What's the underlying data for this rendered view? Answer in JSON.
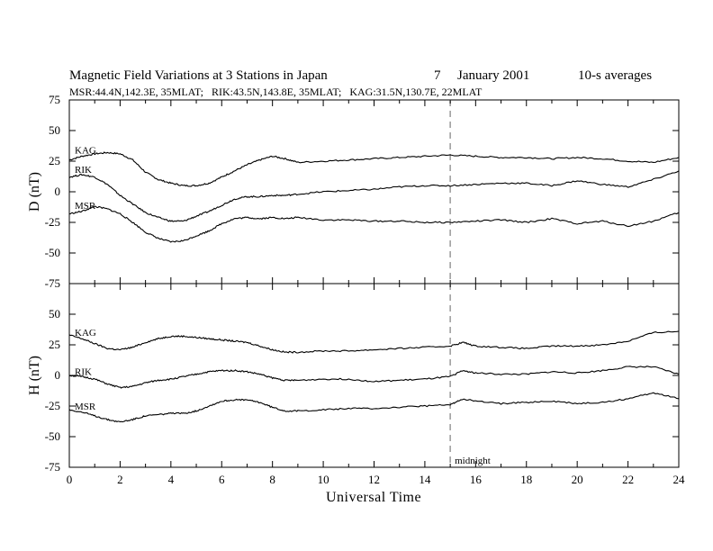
{
  "header": {
    "title_main": "Magnetic Field Variations at 3 Stations in Japan",
    "title_date_day": "7",
    "title_date_month_year": "January 2001",
    "title_averaging": "10-s averages",
    "stations_line": "MSR:44.4N,142.3E, 35MLAT;   RIK:43.5N,143.8E, 35MLAT;   KAG:31.5N,130.7E, 22MLAT"
  },
  "midnight_label": "midnight",
  "colors": {
    "trace": "#000000",
    "midnight_line": "#999999",
    "frame": "#000000"
  },
  "chart_data": [
    {
      "type": "line",
      "panel": "top",
      "ylabel": "D (nT)",
      "xlabel": "",
      "xlim": [
        0,
        24
      ],
      "ylim": [
        -75,
        75
      ],
      "yticks": [
        75,
        50,
        25,
        0,
        -25,
        -50,
        -75
      ],
      "ytick_labels": [
        "75",
        "50",
        "25",
        "0",
        "-25",
        "-50",
        "-75"
      ],
      "xticks": [
        0,
        2,
        4,
        6,
        8,
        10,
        12,
        14,
        16,
        18,
        20,
        22,
        24
      ],
      "grid": false,
      "series": [
        {
          "name": "KAG",
          "x": [
            0,
            0.5,
            1,
            1.5,
            2,
            2.5,
            3,
            3.5,
            4,
            4.5,
            5,
            5.5,
            6,
            6.5,
            7,
            7.5,
            8,
            8.5,
            9,
            10,
            11,
            12,
            13,
            14,
            15,
            16,
            17,
            18,
            19,
            20,
            21,
            22,
            23,
            24
          ],
          "y": [
            26,
            29,
            31,
            32,
            31,
            26,
            16,
            10,
            7,
            5,
            5,
            7,
            12,
            17,
            22,
            26,
            29,
            27,
            24,
            25,
            26,
            27,
            28,
            29,
            30,
            29,
            28,
            28,
            27,
            28,
            27,
            25,
            24,
            28
          ]
        },
        {
          "name": "RIK",
          "x": [
            0,
            0.5,
            1,
            1.5,
            2,
            2.5,
            3,
            3.5,
            4,
            4.5,
            5,
            5.5,
            6,
            6.5,
            7,
            7.5,
            8,
            8.5,
            9,
            10,
            11,
            12,
            13,
            14,
            15,
            16,
            17,
            18,
            19,
            20,
            21,
            22,
            23,
            24
          ],
          "y": [
            12,
            14,
            12,
            6,
            -3,
            -10,
            -17,
            -21,
            -24,
            -24,
            -20,
            -16,
            -11,
            -6,
            -4,
            -4,
            -3,
            -3,
            -2,
            0,
            1,
            2,
            4,
            5,
            5,
            6,
            7,
            7,
            5,
            9,
            6,
            4,
            10,
            17
          ]
        },
        {
          "name": "MSR",
          "x": [
            0,
            0.5,
            1,
            1.5,
            2,
            2.5,
            3,
            3.5,
            4,
            4.5,
            5,
            5.5,
            6,
            6.5,
            7,
            7.5,
            8,
            8.5,
            9,
            10,
            11,
            12,
            13,
            14,
            15,
            16,
            17,
            18,
            19,
            20,
            21,
            22,
            23,
            24
          ],
          "y": [
            -18,
            -16,
            -12,
            -14,
            -18,
            -25,
            -33,
            -38,
            -41,
            -40,
            -36,
            -32,
            -26,
            -22,
            -21,
            -22,
            -21,
            -22,
            -21,
            -23,
            -23,
            -24,
            -24,
            -25,
            -25,
            -24,
            -23,
            -25,
            -22,
            -26,
            -24,
            -28,
            -24,
            -17
          ]
        }
      ]
    },
    {
      "type": "line",
      "panel": "bottom",
      "ylabel": "H (nT)",
      "xlabel": "Universal Time",
      "xlim": [
        0,
        24
      ],
      "ylim": [
        -75,
        75
      ],
      "yticks": [
        50,
        25,
        0,
        -25,
        -50,
        -75
      ],
      "ytick_labels": [
        "50",
        "25",
        "0",
        "-25",
        "-50",
        "-75"
      ],
      "xticks": [
        0,
        2,
        4,
        6,
        8,
        10,
        12,
        14,
        16,
        18,
        20,
        22,
        24
      ],
      "xtick_labels": [
        "0",
        "2",
        "4",
        "6",
        "8",
        "10",
        "12",
        "14",
        "16",
        "18",
        "20",
        "22",
        "24"
      ],
      "grid": false,
      "midnight_x": 15,
      "series": [
        {
          "name": "KAG",
          "x": [
            0,
            0.5,
            1,
            1.5,
            2,
            2.5,
            3,
            3.5,
            4,
            4.5,
            5,
            5.5,
            6,
            6.5,
            7,
            7.5,
            8,
            8.5,
            9,
            10,
            11,
            12,
            13,
            14,
            15,
            15.5,
            16,
            17,
            18,
            19,
            20,
            21,
            22,
            23,
            24
          ],
          "y": [
            33,
            30,
            26,
            22,
            21,
            23,
            27,
            30,
            32,
            32,
            31,
            30,
            29,
            28,
            27,
            24,
            21,
            19,
            19,
            20,
            20,
            21,
            22,
            23,
            24,
            27,
            24,
            23,
            22,
            24,
            24,
            25,
            28,
            35,
            36
          ]
        },
        {
          "name": "RIK",
          "x": [
            0,
            0.5,
            1,
            1.5,
            2,
            2.5,
            3,
            3.5,
            4,
            4.5,
            5,
            5.5,
            6,
            6.5,
            7,
            7.5,
            8,
            8.5,
            9,
            10,
            11,
            12,
            13,
            14,
            15,
            15.5,
            16,
            17,
            18,
            19,
            20,
            21,
            22,
            23,
            24
          ],
          "y": [
            0,
            -1,
            -3,
            -7,
            -10,
            -9,
            -6,
            -4,
            -3,
            -1,
            1,
            3,
            4,
            4,
            3,
            1,
            -2,
            -4,
            -4,
            -3,
            -3,
            -5,
            -4,
            -3,
            -1,
            4,
            2,
            1,
            1,
            3,
            2,
            4,
            7,
            7,
            1
          ]
        },
        {
          "name": "MSR",
          "x": [
            0,
            0.5,
            1,
            1.5,
            2,
            2.5,
            3,
            3.5,
            4,
            4.5,
            5,
            5.5,
            6,
            6.5,
            7,
            7.5,
            8,
            8.5,
            9,
            10,
            11,
            12,
            13,
            14,
            15,
            15.5,
            16,
            17,
            18,
            19,
            20,
            21,
            22,
            23,
            24
          ],
          "y": [
            -28,
            -30,
            -33,
            -36,
            -38,
            -36,
            -33,
            -32,
            -31,
            -31,
            -29,
            -25,
            -21,
            -20,
            -20,
            -22,
            -26,
            -29,
            -29,
            -28,
            -27,
            -27,
            -26,
            -25,
            -24,
            -19,
            -21,
            -23,
            -22,
            -21,
            -23,
            -22,
            -19,
            -14,
            -19
          ]
        }
      ]
    }
  ]
}
